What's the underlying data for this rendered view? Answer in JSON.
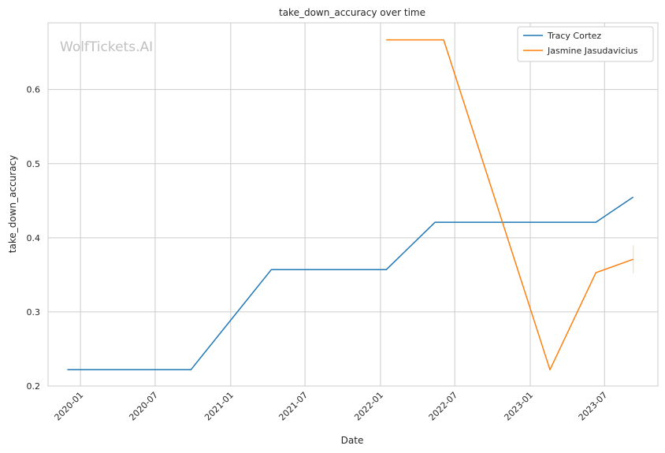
{
  "chart_data": {
    "type": "line",
    "title": "take_down_accuracy over time",
    "xlabel": "Date",
    "ylabel": "take_down_accuracy",
    "watermark": "WolfTickets.AI",
    "x_is_date": true,
    "xlim": [
      "2019-10-14",
      "2023-11-08"
    ],
    "ylim": [
      0.2,
      0.69
    ],
    "x_ticks": [
      {
        "date": "2020-01-01",
        "label": "2020-01"
      },
      {
        "date": "2020-07-01",
        "label": "2020-07"
      },
      {
        "date": "2021-01-01",
        "label": "2021-01"
      },
      {
        "date": "2021-07-01",
        "label": "2021-07"
      },
      {
        "date": "2022-01-01",
        "label": "2022-01"
      },
      {
        "date": "2022-07-01",
        "label": "2022-07"
      },
      {
        "date": "2023-01-01",
        "label": "2023-01"
      },
      {
        "date": "2023-07-01",
        "label": "2023-07"
      }
    ],
    "y_ticks": [
      {
        "value": 0.2,
        "label": "0.2"
      },
      {
        "value": 0.3,
        "label": "0.3"
      },
      {
        "value": 0.4,
        "label": "0.4"
      },
      {
        "value": 0.5,
        "label": "0.5"
      },
      {
        "value": 0.6,
        "label": "0.6"
      }
    ],
    "grid": true,
    "legend_position": "top-right",
    "series": [
      {
        "name": "Tracy Cortez",
        "color": "#1f77b4",
        "points": [
          {
            "x": "2019-11-30",
            "y": 0.222
          },
          {
            "x": "2020-09-26",
            "y": 0.222
          },
          {
            "x": "2021-04-10",
            "y": 0.357
          },
          {
            "x": "2022-01-15",
            "y": 0.357
          },
          {
            "x": "2022-05-14",
            "y": 0.421
          },
          {
            "x": "2023-06-10",
            "y": 0.421
          },
          {
            "x": "2023-09-09",
            "y": 0.455
          }
        ]
      },
      {
        "name": "Jasmine Jasudavicius",
        "color": "#ff7f0e",
        "points": [
          {
            "x": "2022-01-15",
            "y": 0.667
          },
          {
            "x": "2022-06-04",
            "y": 0.667
          },
          {
            "x": "2023-02-18",
            "y": 0.222
          },
          {
            "x": "2023-06-10",
            "y": 0.353
          },
          {
            "x": "2023-09-09",
            "y": 0.371
          }
        ],
        "error_bar": {
          "x": "2023-09-09",
          "y_low": 0.352,
          "y_high": 0.39
        }
      }
    ]
  }
}
